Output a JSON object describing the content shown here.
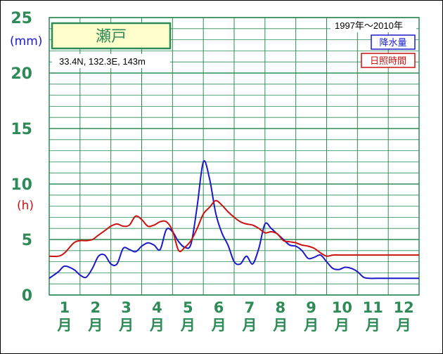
{
  "chart_data": {
    "type": "line",
    "title": "瀬戸",
    "location": "33.4N,  132.3E,  143m",
    "period": "1997年〜2010年",
    "y_unit_rain": "(mm)",
    "y_unit_sun": "(h)",
    "ylim": [
      0,
      25
    ],
    "y_ticks": [
      "0",
      "5",
      "10",
      "15",
      "20",
      "25"
    ],
    "x_ticks": [
      {
        "num": "1",
        "unit": "月"
      },
      {
        "num": "2",
        "unit": "月"
      },
      {
        "num": "3",
        "unit": "月"
      },
      {
        "num": "4",
        "unit": "月"
      },
      {
        "num": "5",
        "unit": "月"
      },
      {
        "num": "6",
        "unit": "月"
      },
      {
        "num": "7",
        "unit": "月"
      },
      {
        "num": "8",
        "unit": "月"
      },
      {
        "num": "9",
        "unit": "月"
      },
      {
        "num": "10",
        "unit": "月"
      },
      {
        "num": "11",
        "unit": "月"
      },
      {
        "num": "12",
        "unit": "月"
      }
    ],
    "xlim": [
      0.5,
      12.5
    ],
    "grid": true,
    "legend": "top-right",
    "series": [
      {
        "name": "降水量",
        "color": "#1a1acc",
        "x": [
          0.5,
          0.8,
          1.0,
          1.3,
          1.5,
          1.7,
          1.9,
          2.1,
          2.3,
          2.5,
          2.7,
          2.9,
          3.1,
          3.3,
          3.5,
          3.7,
          3.9,
          4.1,
          4.3,
          4.5,
          4.7,
          4.9,
          5.1,
          5.3,
          5.5,
          5.7,
          5.9,
          6.1,
          6.3,
          6.5,
          6.7,
          6.9,
          7.1,
          7.3,
          7.5,
          7.7,
          7.9,
          8.1,
          8.3,
          8.5,
          8.7,
          8.9,
          9.1,
          9.3,
          9.5,
          9.7,
          9.9,
          10.1,
          10.3,
          10.5,
          10.7,
          10.9,
          11.1,
          11.3,
          11.5,
          11.7,
          11.9,
          12.1,
          12.3,
          12.5
        ],
        "values": [
          1.5,
          2.1,
          2.6,
          2.3,
          1.8,
          1.6,
          2.4,
          3.5,
          3.6,
          2.8,
          2.8,
          4.2,
          4.1,
          3.9,
          4.4,
          4.7,
          4.5,
          4.1,
          5.9,
          5.7,
          4.8,
          4.3,
          4.6,
          8.0,
          12.0,
          10.5,
          7.4,
          5.6,
          4.5,
          3.0,
          2.8,
          3.5,
          2.8,
          4.2,
          6.4,
          6.0,
          5.5,
          5.0,
          4.5,
          4.4,
          4.0,
          3.3,
          3.4,
          3.6,
          3.0,
          2.4,
          2.3,
          2.5,
          2.4,
          2.1,
          1.6,
          1.5,
          1.5,
          1.5,
          1.5,
          1.5,
          1.5,
          1.5,
          1.5,
          1.5
        ]
      },
      {
        "name": "日照時間",
        "color": "#cc1111",
        "x": [
          0.5,
          0.8,
          1.0,
          1.3,
          1.5,
          1.7,
          1.9,
          2.1,
          2.3,
          2.5,
          2.7,
          2.9,
          3.1,
          3.3,
          3.5,
          3.7,
          3.9,
          4.1,
          4.3,
          4.5,
          4.7,
          4.9,
          5.1,
          5.3,
          5.5,
          5.7,
          5.9,
          6.1,
          6.3,
          6.5,
          6.7,
          6.9,
          7.1,
          7.3,
          7.5,
          7.7,
          7.9,
          8.1,
          8.3,
          8.5,
          8.7,
          8.9,
          9.1,
          9.3,
          9.5,
          9.7,
          9.9,
          10.1,
          10.3,
          10.5,
          10.7,
          10.9,
          11.1,
          11.3,
          11.5,
          11.7,
          11.9,
          12.1,
          12.3,
          12.5
        ],
        "values": [
          3.5,
          3.5,
          3.8,
          4.7,
          4.9,
          4.9,
          5.0,
          5.4,
          5.8,
          6.2,
          6.4,
          6.2,
          6.3,
          7.1,
          6.8,
          6.2,
          6.3,
          6.6,
          6.6,
          5.8,
          4.0,
          4.3,
          4.9,
          6.0,
          7.3,
          7.9,
          8.5,
          8.1,
          7.5,
          7.0,
          6.6,
          6.4,
          6.3,
          6.0,
          5.6,
          5.7,
          5.5,
          4.9,
          4.8,
          4.7,
          4.5,
          4.4,
          4.2,
          3.8,
          3.5,
          3.6,
          3.6,
          3.6,
          3.6,
          3.6,
          3.6,
          3.6,
          3.6,
          3.6,
          3.6,
          3.6,
          3.6,
          3.6,
          3.6,
          3.6
        ]
      }
    ]
  }
}
